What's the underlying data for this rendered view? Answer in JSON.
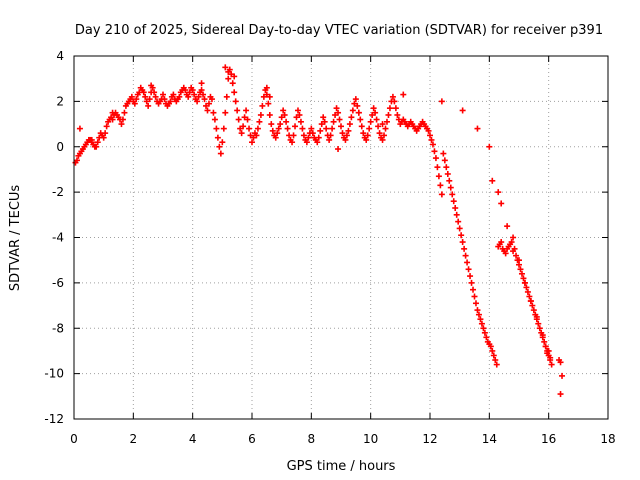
{
  "chart_data": {
    "type": "scatter",
    "title": "Day 210 of 2025, Sidereal Day-to-day VTEC variation (SDTVAR) for receiver p391",
    "xlabel": "GPS time / hours",
    "ylabel": "SDTVAR / TECUs",
    "xlim": [
      0,
      18
    ],
    "ylim": [
      -12,
      4
    ],
    "xticks": [
      0,
      2,
      4,
      6,
      8,
      10,
      12,
      14,
      16,
      18
    ],
    "yticks": [
      -12,
      -10,
      -8,
      -6,
      -4,
      -2,
      0,
      2,
      4
    ],
    "xtick_labels": [
      "0",
      "2",
      "4",
      "6",
      "8",
      "10",
      "12",
      "14",
      "16",
      "18"
    ],
    "ytick_labels": [
      "-12",
      "-10",
      "-8",
      "-6",
      "-4",
      "-2",
      "0",
      "2",
      "4"
    ],
    "grid": true,
    "marker": "plus",
    "color": "#ff0000",
    "series": [
      {
        "name": "p391",
        "x": [
          0.05,
          0.1,
          0.15,
          0.2,
          0.25,
          0.3,
          0.35,
          0.4,
          0.45,
          0.5,
          0.55,
          0.6,
          0.65,
          0.7,
          0.75,
          0.8,
          0.85,
          0.9,
          0.95,
          1.0,
          1.05,
          1.1,
          1.15,
          1.2,
          1.25,
          1.3,
          1.35,
          1.4,
          1.45,
          1.5,
          1.55,
          1.6,
          1.65,
          1.7,
          1.75,
          1.8,
          1.85,
          1.9,
          1.95,
          2.0,
          2.05,
          2.1,
          2.15,
          2.2,
          2.25,
          2.3,
          2.35,
          2.4,
          2.45,
          2.5,
          2.55,
          2.6,
          2.65,
          2.7,
          2.75,
          2.8,
          2.85,
          2.9,
          2.95,
          3.0,
          3.05,
          3.1,
          3.15,
          3.2,
          3.25,
          3.3,
          3.35,
          3.4,
          3.45,
          3.5,
          3.55,
          3.6,
          3.65,
          3.7,
          3.75,
          3.8,
          3.85,
          3.9,
          3.95,
          4.0,
          4.05,
          4.1,
          4.15,
          4.2,
          4.25,
          4.3,
          4.35,
          4.4,
          4.45,
          4.5,
          4.55,
          4.6,
          4.65,
          4.7,
          4.75,
          4.8,
          4.85,
          4.9,
          4.95,
          5.0,
          5.05,
          5.1,
          5.15,
          5.2,
          5.25,
          5.3,
          5.35,
          5.4,
          5.45,
          5.5,
          5.55,
          5.6,
          5.65,
          5.7,
          5.75,
          5.8,
          5.85,
          5.9,
          5.95,
          6.0,
          6.05,
          6.1,
          6.15,
          6.2,
          6.25,
          6.3,
          6.35,
          6.4,
          6.45,
          6.5,
          6.55,
          6.6,
          6.65,
          6.7,
          6.75,
          6.8,
          6.85,
          6.9,
          6.95,
          7.0,
          7.05,
          7.1,
          7.15,
          7.2,
          7.25,
          7.3,
          7.35,
          7.4,
          7.45,
          7.5,
          7.55,
          7.6,
          7.65,
          7.7,
          7.75,
          7.8,
          7.85,
          7.9,
          7.95,
          8.0,
          8.05,
          8.1,
          8.15,
          8.2,
          8.25,
          8.3,
          8.35,
          8.4,
          8.45,
          8.5,
          8.55,
          8.6,
          8.65,
          8.7,
          8.75,
          8.8,
          8.85,
          8.9,
          8.95,
          9.0,
          9.05,
          9.1,
          9.15,
          9.2,
          9.25,
          9.3,
          9.35,
          9.4,
          9.45,
          9.5,
          9.55,
          9.6,
          9.65,
          9.7,
          9.75,
          9.8,
          9.85,
          9.9,
          9.95,
          10.0,
          10.05,
          10.1,
          10.15,
          10.2,
          10.25,
          10.3,
          10.35,
          10.4,
          10.45,
          10.5,
          10.55,
          10.6,
          10.65,
          10.7,
          10.75,
          10.8,
          10.85,
          10.9,
          10.95,
          11.0,
          11.05,
          11.1,
          11.15,
          11.2,
          11.25,
          11.3,
          11.35,
          11.4,
          11.45,
          11.5,
          11.55,
          11.6,
          11.65,
          11.7,
          11.75,
          11.8,
          11.85,
          11.9,
          11.95,
          12.0,
          12.05,
          12.1,
          12.15,
          12.2,
          12.25,
          12.3,
          12.35,
          12.4,
          12.45,
          12.5,
          12.55,
          12.6,
          12.65,
          12.7,
          12.75,
          12.8,
          12.85,
          12.9,
          12.95,
          13.0,
          13.05,
          13.1,
          13.15,
          13.2,
          13.25,
          13.3,
          13.35,
          13.4,
          13.45,
          13.5,
          13.55,
          13.6,
          13.65,
          13.7,
          13.75,
          13.8,
          13.85,
          13.9,
          13.95,
          14.0,
          14.05,
          14.1,
          14.15,
          14.2,
          14.25,
          14.3,
          14.35,
          14.4,
          14.45,
          14.5,
          14.55,
          14.6,
          14.65,
          14.7,
          14.75,
          14.8,
          14.85,
          14.9,
          14.95,
          15.0,
          15.05,
          15.1,
          15.15,
          15.2,
          15.25,
          15.3,
          15.35,
          15.4,
          15.45,
          15.5,
          15.55,
          15.6,
          15.65,
          15.7,
          15.75,
          15.8,
          15.85,
          15.9,
          15.95,
          16.0,
          16.05,
          16.1,
          0.2,
          0.6,
          1.3,
          2.6,
          3.2,
          4.3,
          5.1,
          5.2,
          5.4,
          6.5,
          6.6,
          8.9,
          9.6,
          10.4,
          11.1,
          12.4,
          13.1,
          13.6,
          14.0,
          14.1,
          14.3,
          14.4,
          14.6,
          14.8,
          15.0,
          15.2,
          15.4,
          15.6,
          15.8,
          16.0,
          16.05,
          15.9,
          15.95,
          16.35,
          16.4,
          16.45,
          16.4
        ],
        "y": [
          -0.7,
          -0.6,
          -0.4,
          -0.3,
          -0.2,
          -0.1,
          0.0,
          0.1,
          0.2,
          0.3,
          0.3,
          0.2,
          0.1,
          0.0,
          0.0,
          0.2,
          0.4,
          0.6,
          0.5,
          0.4,
          0.6,
          0.9,
          1.1,
          1.2,
          1.3,
          1.2,
          1.4,
          1.5,
          1.4,
          1.3,
          1.2,
          1.0,
          1.2,
          1.5,
          1.8,
          1.9,
          2.0,
          2.1,
          2.2,
          2.0,
          1.9,
          2.1,
          2.3,
          2.4,
          2.6,
          2.5,
          2.4,
          2.2,
          2.0,
          1.8,
          2.1,
          2.4,
          2.6,
          2.4,
          2.2,
          2.0,
          1.9,
          2.0,
          2.1,
          2.3,
          2.1,
          1.9,
          1.8,
          1.9,
          2.0,
          2.2,
          2.3,
          2.1,
          2.0,
          2.1,
          2.2,
          2.4,
          2.5,
          2.6,
          2.5,
          2.3,
          2.2,
          2.4,
          2.6,
          2.5,
          2.3,
          2.1,
          2.0,
          2.2,
          2.4,
          2.5,
          2.3,
          2.1,
          1.8,
          1.6,
          1.9,
          2.2,
          2.1,
          1.5,
          1.2,
          0.8,
          0.4,
          0.0,
          -0.3,
          0.2,
          0.8,
          1.5,
          2.2,
          3.0,
          3.4,
          3.2,
          2.8,
          2.4,
          2.0,
          1.6,
          1.2,
          0.8,
          0.6,
          0.9,
          1.3,
          1.6,
          1.2,
          0.8,
          0.5,
          0.2,
          0.4,
          0.6,
          0.5,
          0.8,
          1.1,
          1.4,
          1.8,
          2.2,
          2.5,
          2.3,
          1.9,
          1.4,
          1.0,
          0.7,
          0.5,
          0.4,
          0.6,
          0.8,
          1.0,
          1.3,
          1.6,
          1.4,
          1.1,
          0.8,
          0.5,
          0.3,
          0.2,
          0.5,
          0.9,
          1.3,
          1.6,
          1.4,
          1.1,
          0.8,
          0.5,
          0.3,
          0.2,
          0.4,
          0.6,
          0.8,
          0.6,
          0.4,
          0.3,
          0.2,
          0.4,
          0.7,
          1.0,
          1.3,
          1.1,
          0.8,
          0.5,
          0.3,
          0.5,
          0.8,
          1.1,
          1.4,
          1.7,
          1.5,
          1.2,
          0.9,
          0.6,
          0.4,
          0.3,
          0.5,
          0.7,
          1.0,
          1.3,
          1.6,
          1.9,
          2.1,
          1.8,
          1.5,
          1.2,
          0.9,
          0.6,
          0.4,
          0.3,
          0.5,
          0.8,
          1.1,
          1.4,
          1.7,
          1.5,
          1.2,
          0.9,
          0.6,
          0.4,
          0.3,
          0.5,
          0.8,
          1.1,
          1.4,
          1.7,
          2.0,
          2.2,
          2.0,
          1.7,
          1.4,
          1.2,
          1.0,
          1.1,
          1.2,
          1.1,
          1.0,
          0.9,
          1.0,
          1.1,
          1.0,
          0.9,
          0.8,
          0.7,
          0.8,
          0.9,
          1.0,
          1.1,
          1.0,
          0.9,
          0.8,
          0.7,
          0.5,
          0.3,
          0.1,
          -0.2,
          -0.5,
          -0.9,
          -1.3,
          -1.7,
          -2.1,
          -0.3,
          -0.6,
          -0.9,
          -1.2,
          -1.5,
          -1.8,
          -2.1,
          -2.4,
          -2.7,
          -3.0,
          -3.3,
          -3.6,
          -3.9,
          -4.2,
          -4.5,
          -4.8,
          -5.1,
          -5.4,
          -5.7,
          -6.0,
          -6.3,
          -6.6,
          -6.9,
          -7.2,
          -7.4,
          -7.6,
          -7.8,
          -8.0,
          -8.2,
          -8.4,
          -8.6,
          -8.7,
          -8.8,
          -9.0,
          -9.2,
          -9.4,
          -9.6,
          -4.4,
          -4.3,
          -4.2,
          -4.5,
          -4.6,
          -4.7,
          -4.5,
          -4.4,
          -4.3,
          -4.2,
          -4.6,
          -4.5,
          -4.8,
          -5.0,
          -5.2,
          -5.4,
          -5.6,
          -5.8,
          -6.0,
          -6.2,
          -6.4,
          -6.6,
          -6.8,
          -7.0,
          -7.2,
          -7.4,
          -7.6,
          -7.8,
          -8.0,
          -8.2,
          -8.4,
          -8.6,
          -8.8,
          -9.0,
          -9.2,
          -9.4,
          -9.6,
          0.8,
          0.3,
          1.5,
          2.7,
          1.9,
          2.8,
          3.5,
          3.3,
          3.1,
          2.6,
          2.2,
          -0.1,
          1.5,
          1.0,
          2.3,
          2.0,
          1.6,
          0.8,
          0.0,
          -1.5,
          -2.0,
          -2.5,
          -3.5,
          -4.0,
          -5.0,
          -6.0,
          -6.8,
          -7.5,
          -8.3,
          -9.0,
          -9.3,
          -8.8,
          -9.1,
          -9.4,
          -9.5,
          -10.1,
          -10.9
        ]
      }
    ]
  }
}
